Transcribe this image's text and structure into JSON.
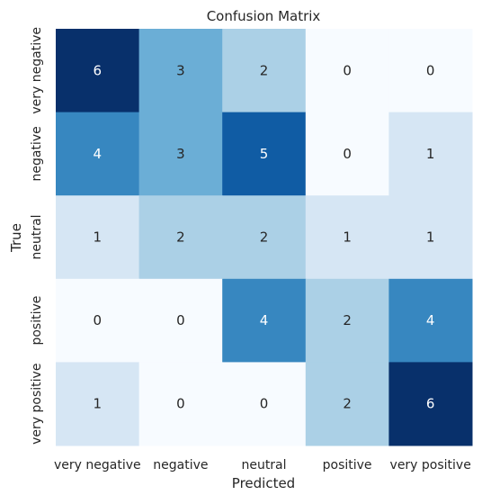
{
  "chart_data": {
    "type": "heatmap",
    "title": "Confusion Matrix",
    "xlabel": "Predicted",
    "ylabel": "True",
    "x_categories": [
      "very negative",
      "negative",
      "neutral",
      "positive",
      "very positive"
    ],
    "y_categories": [
      "very negative",
      "negative",
      "neutral",
      "positive",
      "very positive"
    ],
    "values": [
      [
        6,
        3,
        2,
        0,
        0
      ],
      [
        4,
        3,
        5,
        0,
        1
      ],
      [
        1,
        2,
        2,
        1,
        1
      ],
      [
        0,
        0,
        4,
        2,
        4
      ],
      [
        1,
        0,
        0,
        2,
        6
      ]
    ],
    "value_range": [
      0,
      6
    ],
    "colormap": "Blues",
    "colorbar": false,
    "grid": false
  }
}
